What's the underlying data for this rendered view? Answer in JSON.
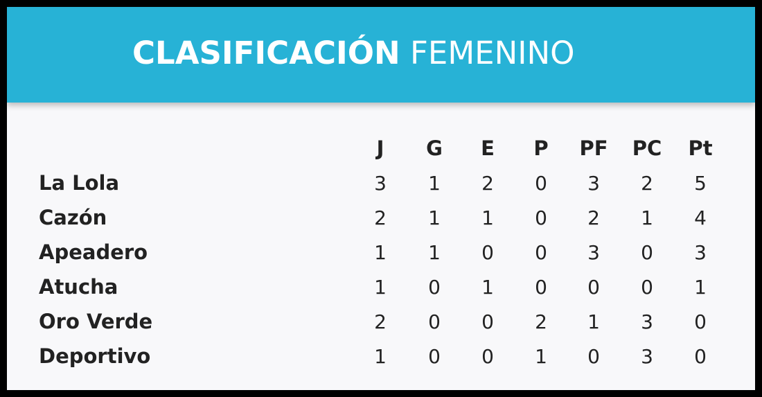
{
  "header": {
    "title_bold": "CLASIFICACIÓN",
    "title_light": "FEMENINO",
    "background": "#27b2d6"
  },
  "table": {
    "columns": [
      "J",
      "G",
      "E",
      "P",
      "PF",
      "PC",
      "Pt"
    ],
    "rows": [
      {
        "team": "La Lola",
        "values": [
          3,
          1,
          2,
          0,
          3,
          2,
          5
        ]
      },
      {
        "team": "Cazón",
        "values": [
          2,
          1,
          1,
          0,
          2,
          1,
          4
        ]
      },
      {
        "team": "Apeadero",
        "values": [
          1,
          1,
          0,
          0,
          3,
          0,
          3
        ]
      },
      {
        "team": "Atucha",
        "values": [
          1,
          0,
          1,
          0,
          0,
          0,
          1
        ]
      },
      {
        "team": "Oro Verde",
        "values": [
          2,
          0,
          0,
          2,
          1,
          3,
          0
        ]
      },
      {
        "team": "Deportivo",
        "values": [
          1,
          0,
          0,
          1,
          0,
          3,
          0
        ]
      }
    ]
  }
}
